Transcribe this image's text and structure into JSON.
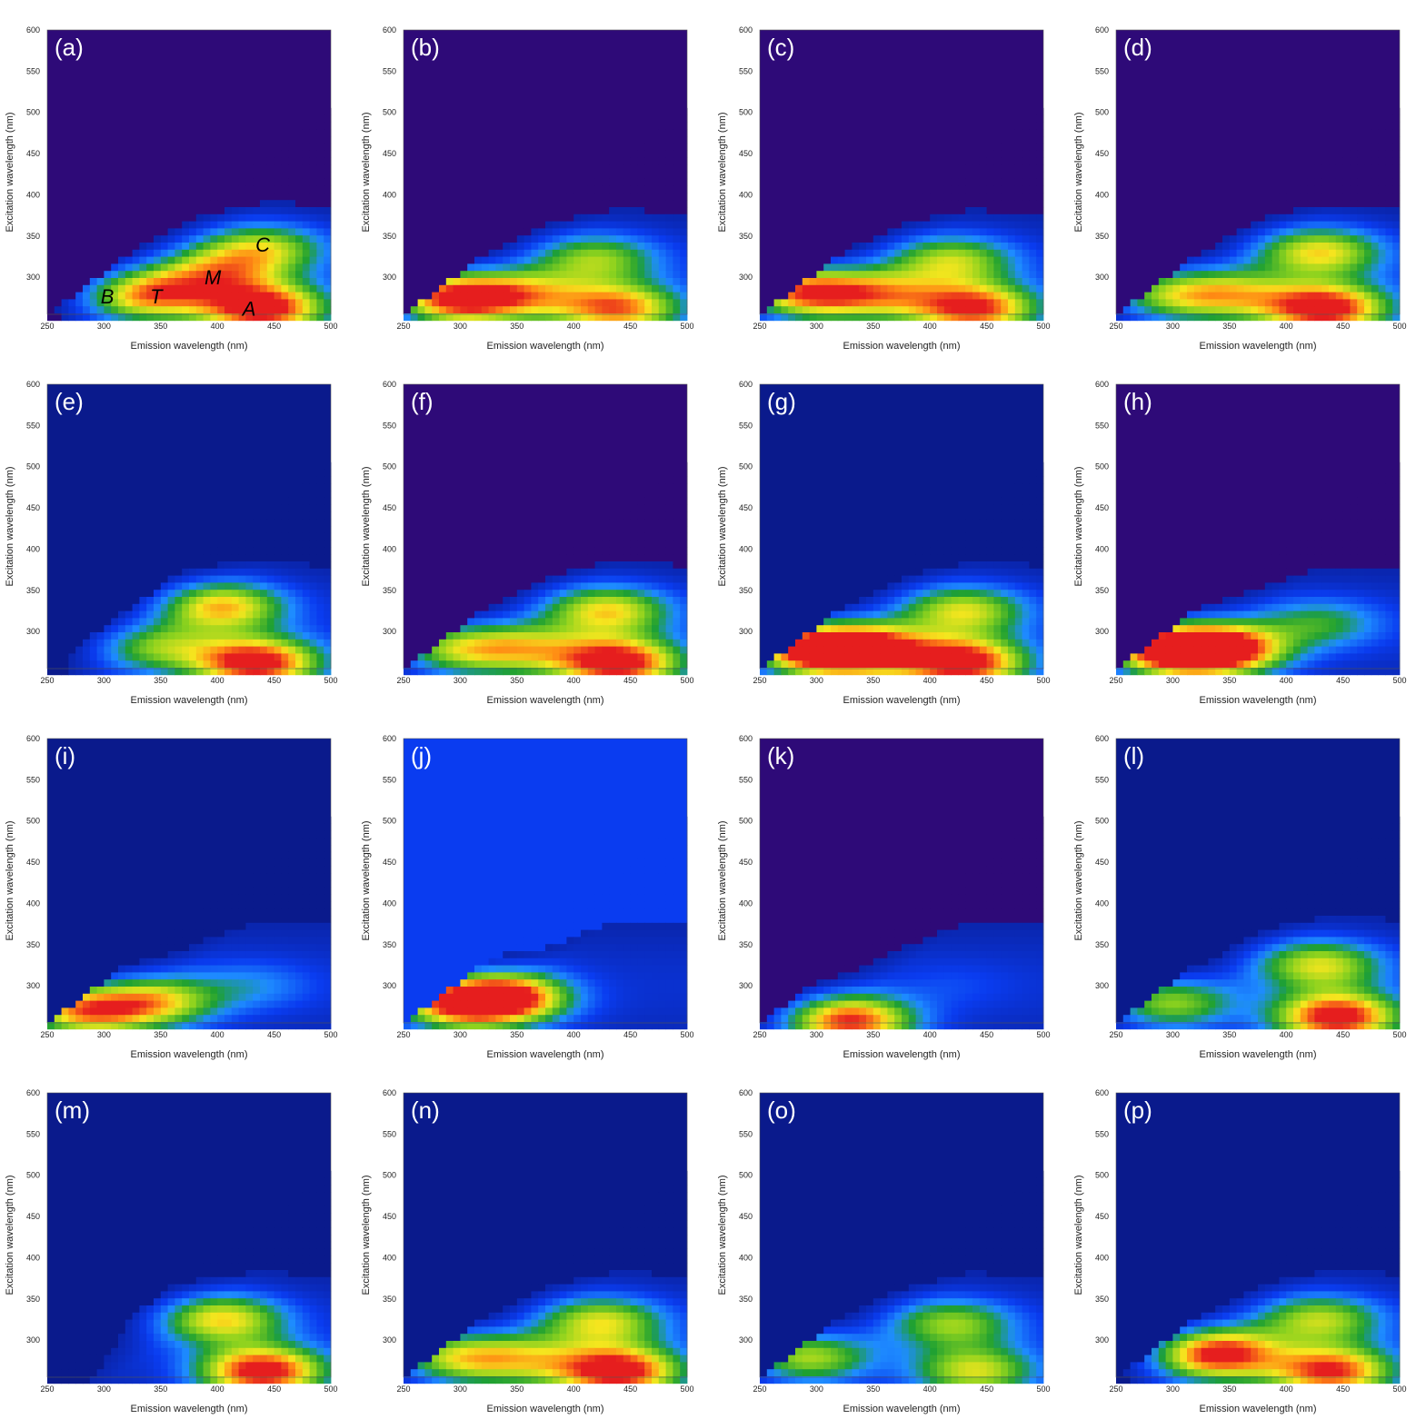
{
  "colors": {
    "background_dark": "#2e0a78",
    "background_navy": "#0a1a8c",
    "blue": "#0a3cf0",
    "cyan": "#1e8cff",
    "green": "#1ea032",
    "lime": "#8cd21e",
    "yellow": "#f5e61e",
    "orange": "#ff8c14",
    "red": "#e61e1e"
  },
  "chart_data": [
    {
      "type": "heatmap",
      "label": "(a)",
      "xlabel": "Emission wavelength (nm)",
      "ylabel": "Excitation wavelength (nm)",
      "xlim": [
        250,
        500
      ],
      "ylim": [
        255,
        600
      ],
      "xticks": [
        "250",
        "300",
        "350",
        "400",
        "450",
        "500"
      ],
      "yticks": [
        "300",
        "350",
        "400",
        "450",
        "500",
        "550",
        "600"
      ],
      "background": "dark",
      "peak_labels": [
        {
          "text": "B",
          "em": 303,
          "ex": 277
        },
        {
          "text": "T",
          "em": 346,
          "ex": 277
        },
        {
          "text": "M",
          "em": 396,
          "ex": 300
        },
        {
          "text": "C",
          "em": 440,
          "ex": 340
        },
        {
          "text": "A",
          "em": 428,
          "ex": 262
        }
      ],
      "peaks": [
        {
          "em": 340,
          "ex": 278,
          "i": 0.75
        },
        {
          "em": 400,
          "ex": 305,
          "i": 0.55
        },
        {
          "em": 440,
          "ex": 335,
          "i": 0.55
        },
        {
          "em": 440,
          "ex": 262,
          "i": 1.0
        }
      ]
    },
    {
      "type": "heatmap",
      "label": "(b)",
      "xlabel": "Emission wavelength (nm)",
      "ylabel": "Excitation wavelength (nm)",
      "xlim": [
        250,
        500
      ],
      "ylim": [
        255,
        600
      ],
      "xticks": [
        "250",
        "300",
        "350",
        "400",
        "450",
        "500"
      ],
      "yticks": [
        "300",
        "350",
        "400",
        "450",
        "500",
        "550",
        "600"
      ],
      "background": "dark",
      "peak_labels": [],
      "peaks": [
        {
          "em": 296,
          "ex": 275,
          "i": 1.0
        },
        {
          "em": 360,
          "ex": 278,
          "i": 0.5
        },
        {
          "em": 420,
          "ex": 322,
          "i": 0.5
        },
        {
          "em": 440,
          "ex": 262,
          "i": 0.8
        }
      ]
    },
    {
      "type": "heatmap",
      "label": "(c)",
      "xlabel": "Emission wavelength (nm)",
      "ylabel": "Excitation wavelength (nm)",
      "xlim": [
        250,
        500
      ],
      "ylim": [
        255,
        600
      ],
      "xticks": [
        "250",
        "300",
        "350",
        "400",
        "450",
        "500"
      ],
      "yticks": [
        "300",
        "350",
        "400",
        "450",
        "500",
        "550",
        "600"
      ],
      "background": "dark",
      "peak_labels": [],
      "peaks": [
        {
          "em": 290,
          "ex": 282,
          "i": 0.9
        },
        {
          "em": 360,
          "ex": 278,
          "i": 0.55
        },
        {
          "em": 420,
          "ex": 320,
          "i": 0.55
        },
        {
          "em": 440,
          "ex": 262,
          "i": 0.9
        }
      ]
    },
    {
      "type": "heatmap",
      "label": "(d)",
      "xlabel": "Emission wavelength (nm)",
      "ylabel": "Excitation wavelength (nm)",
      "xlim": [
        250,
        500
      ],
      "ylim": [
        255,
        600
      ],
      "xticks": [
        "250",
        "300",
        "350",
        "400",
        "450",
        "500"
      ],
      "yticks": [
        "300",
        "350",
        "400",
        "450",
        "500",
        "550",
        "600"
      ],
      "background": "dark",
      "peak_labels": [],
      "peaks": [
        {
          "em": 295,
          "ex": 280,
          "i": 0.5
        },
        {
          "em": 355,
          "ex": 278,
          "i": 0.5
        },
        {
          "em": 430,
          "ex": 330,
          "i": 0.65
        },
        {
          "em": 435,
          "ex": 262,
          "i": 1.0
        }
      ]
    },
    {
      "type": "heatmap",
      "label": "(e)",
      "xlabel": "Emission wavelength (nm)",
      "ylabel": "Excitation wavelength (nm)",
      "xlim": [
        250,
        500
      ],
      "ylim": [
        255,
        600
      ],
      "xticks": [
        "250",
        "300",
        "350",
        "400",
        "450",
        "500"
      ],
      "yticks": [
        "300",
        "350",
        "400",
        "450",
        "500",
        "550",
        "600"
      ],
      "background": "navy",
      "peak_labels": [],
      "peaks": [
        {
          "em": 350,
          "ex": 280,
          "i": 0.45
        },
        {
          "em": 405,
          "ex": 330,
          "i": 0.7
        },
        {
          "em": 435,
          "ex": 262,
          "i": 1.0
        }
      ]
    },
    {
      "type": "heatmap",
      "label": "(f)",
      "xlabel": "Emission wavelength (nm)",
      "ylabel": "Excitation wavelength (nm)",
      "xlim": [
        250,
        500
      ],
      "ylim": [
        255,
        600
      ],
      "xticks": [
        "250",
        "300",
        "350",
        "400",
        "450",
        "500"
      ],
      "yticks": [
        "300",
        "350",
        "400",
        "450",
        "500",
        "550",
        "600"
      ],
      "background": "dark",
      "peak_labels": [],
      "peaks": [
        {
          "em": 295,
          "ex": 280,
          "i": 0.55
        },
        {
          "em": 360,
          "ex": 278,
          "i": 0.5
        },
        {
          "em": 430,
          "ex": 325,
          "i": 0.65
        },
        {
          "em": 440,
          "ex": 262,
          "i": 1.0
        }
      ]
    },
    {
      "type": "heatmap",
      "label": "(g)",
      "xlabel": "Emission wavelength (nm)",
      "ylabel": "Excitation wavelength (nm)",
      "xlim": [
        250,
        500
      ],
      "ylim": [
        255,
        600
      ],
      "xticks": [
        "250",
        "300",
        "350",
        "400",
        "450",
        "500"
      ],
      "yticks": [
        "300",
        "350",
        "400",
        "450",
        "500",
        "550",
        "600"
      ],
      "background": "navy",
      "peak_labels": [],
      "peaks": [
        {
          "em": 295,
          "ex": 278,
          "i": 0.95
        },
        {
          "em": 345,
          "ex": 278,
          "i": 0.9
        },
        {
          "em": 430,
          "ex": 325,
          "i": 0.6
        },
        {
          "em": 430,
          "ex": 262,
          "i": 1.0
        }
      ]
    },
    {
      "type": "heatmap",
      "label": "(h)",
      "xlabel": "Emission wavelength (nm)",
      "ylabel": "Excitation wavelength (nm)",
      "xlim": [
        250,
        500
      ],
      "ylim": [
        255,
        600
      ],
      "xticks": [
        "250",
        "300",
        "350",
        "400",
        "450",
        "500"
      ],
      "yticks": [
        "300",
        "350",
        "400",
        "450",
        "500",
        "550",
        "600"
      ],
      "background": "dark",
      "peak_labels": [],
      "peaks": [
        {
          "em": 295,
          "ex": 278,
          "i": 1.0
        },
        {
          "em": 345,
          "ex": 278,
          "i": 0.95
        },
        {
          "em": 430,
          "ex": 310,
          "i": 0.35
        }
      ]
    },
    {
      "type": "heatmap",
      "label": "(i)",
      "xlabel": "Emission wavelength (nm)",
      "ylabel": "Excitation wavelength (nm)",
      "xlim": [
        250,
        500
      ],
      "ylim": [
        255,
        600
      ],
      "xticks": [
        "250",
        "300",
        "350",
        "400",
        "450",
        "500"
      ],
      "yticks": [
        "300",
        "350",
        "400",
        "450",
        "500",
        "550",
        "600"
      ],
      "background": "navy",
      "peak_labels": [],
      "peaks": [
        {
          "em": 280,
          "ex": 270,
          "i": 0.8
        },
        {
          "em": 345,
          "ex": 280,
          "i": 0.6
        },
        {
          "em": 430,
          "ex": 300,
          "i": 0.2
        }
      ]
    },
    {
      "type": "heatmap",
      "label": "(j)",
      "xlabel": "Emission wavelength (nm)",
      "ylabel": "Excitation wavelength (nm)",
      "xlim": [
        250,
        500
      ],
      "ylim": [
        255,
        600
      ],
      "xticks": [
        "250",
        "300",
        "350",
        "400",
        "450",
        "500"
      ],
      "yticks": [
        "300",
        "350",
        "400",
        "450",
        "500",
        "550",
        "600"
      ],
      "background": "blue",
      "peak_labels": [],
      "peaks": [
        {
          "em": 290,
          "ex": 278,
          "i": 0.7
        },
        {
          "em": 338,
          "ex": 285,
          "i": 1.0
        }
      ]
    },
    {
      "type": "heatmap",
      "label": "(k)",
      "xlabel": "Emission wavelength (nm)",
      "ylabel": "Excitation wavelength (nm)",
      "xlim": [
        250,
        500
      ],
      "ylim": [
        255,
        600
      ],
      "xticks": [
        "250",
        "300",
        "350",
        "400",
        "450",
        "500"
      ],
      "yticks": [
        "300",
        "350",
        "400",
        "450",
        "500",
        "550",
        "600"
      ],
      "background": "dark",
      "peak_labels": [],
      "peaks": [
        {
          "em": 330,
          "ex": 257,
          "i": 0.9
        },
        {
          "em": 420,
          "ex": 300,
          "i": 0.08
        }
      ]
    },
    {
      "type": "heatmap",
      "label": "(l)",
      "xlabel": "Emission wavelength (nm)",
      "ylabel": "Excitation wavelength (nm)",
      "xlim": [
        250,
        500
      ],
      "ylim": [
        255,
        600
      ],
      "xticks": [
        "250",
        "300",
        "350",
        "400",
        "450",
        "500"
      ],
      "yticks": [
        "300",
        "350",
        "400",
        "450",
        "500",
        "550",
        "600"
      ],
      "background": "navy",
      "peak_labels": [],
      "peaks": [
        {
          "em": 295,
          "ex": 280,
          "i": 0.55
        },
        {
          "em": 430,
          "ex": 325,
          "i": 0.6
        },
        {
          "em": 445,
          "ex": 262,
          "i": 1.0
        }
      ]
    },
    {
      "type": "heatmap",
      "label": "(m)",
      "xlabel": "Emission wavelength (nm)",
      "ylabel": "Excitation wavelength (nm)",
      "xlim": [
        250,
        500
      ],
      "ylim": [
        255,
        600
      ],
      "xticks": [
        "250",
        "300",
        "350",
        "400",
        "450",
        "500"
      ],
      "yticks": [
        "300",
        "350",
        "400",
        "450",
        "500",
        "550",
        "600"
      ],
      "background": "navy",
      "peak_labels": [],
      "peaks": [
        {
          "em": 405,
          "ex": 325,
          "i": 0.65
        },
        {
          "em": 440,
          "ex": 262,
          "i": 1.0
        }
      ]
    },
    {
      "type": "heatmap",
      "label": "(n)",
      "xlabel": "Emission wavelength (nm)",
      "ylabel": "Excitation wavelength (nm)",
      "xlim": [
        250,
        500
      ],
      "ylim": [
        255,
        600
      ],
      "xticks": [
        "250",
        "300",
        "350",
        "400",
        "450",
        "500"
      ],
      "yticks": [
        "300",
        "350",
        "400",
        "450",
        "500",
        "550",
        "600"
      ],
      "background": "navy",
      "peak_labels": [],
      "peaks": [
        {
          "em": 295,
          "ex": 280,
          "i": 0.6
        },
        {
          "em": 360,
          "ex": 275,
          "i": 0.45
        },
        {
          "em": 425,
          "ex": 322,
          "i": 0.6
        },
        {
          "em": 440,
          "ex": 262,
          "i": 1.0
        }
      ]
    },
    {
      "type": "heatmap",
      "label": "(o)",
      "xlabel": "Emission wavelength (nm)",
      "ylabel": "Excitation wavelength (nm)",
      "xlim": [
        250,
        500
      ],
      "ylim": [
        255,
        600
      ],
      "xticks": [
        "250",
        "300",
        "350",
        "400",
        "450",
        "500"
      ],
      "yticks": [
        "300",
        "350",
        "400",
        "450",
        "500",
        "550",
        "600"
      ],
      "background": "navy",
      "peak_labels": [],
      "peaks": [
        {
          "em": 290,
          "ex": 280,
          "i": 0.6
        },
        {
          "em": 420,
          "ex": 320,
          "i": 0.5
        },
        {
          "em": 440,
          "ex": 262,
          "i": 0.6
        }
      ]
    },
    {
      "type": "heatmap",
      "label": "(p)",
      "xlabel": "Emission wavelength (nm)",
      "ylabel": "Excitation wavelength (nm)",
      "xlim": [
        250,
        500
      ],
      "ylim": [
        255,
        600
      ],
      "xticks": [
        "250",
        "300",
        "350",
        "400",
        "450",
        "500"
      ],
      "yticks": [
        "300",
        "350",
        "400",
        "450",
        "500",
        "550",
        "600"
      ],
      "background": "navy",
      "peak_labels": [],
      "peaks": [
        {
          "em": 340,
          "ex": 283,
          "i": 0.95
        },
        {
          "em": 430,
          "ex": 325,
          "i": 0.55
        },
        {
          "em": 440,
          "ex": 262,
          "i": 0.9
        }
      ]
    }
  ]
}
